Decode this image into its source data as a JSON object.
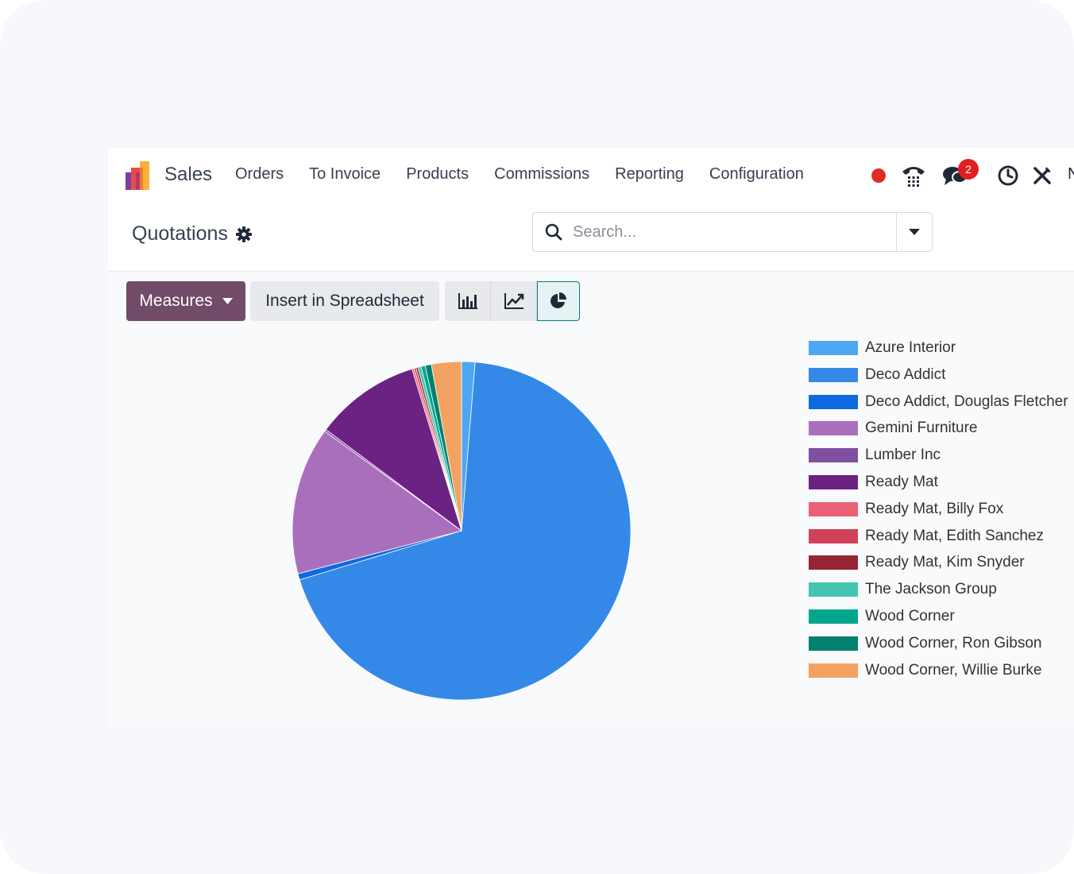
{
  "navbar": {
    "app_name": "Sales",
    "menu": [
      "Orders",
      "To Invoice",
      "Products",
      "Commissions",
      "Reporting",
      "Configuration"
    ],
    "messages_count": "2",
    "overflow_letter": "N"
  },
  "controlbar": {
    "breadcrumb": "Quotations",
    "search_placeholder": "Search..."
  },
  "toolbar": {
    "measures_label": "Measures",
    "spreadsheet_label": "Insert in Spreadsheet"
  },
  "chart_data": {
    "type": "pie",
    "title": "",
    "legend_position": "right",
    "categories": [
      "Azure Interior",
      "Deco Addict",
      "Deco Addict, Douglas Fletcher",
      "Gemini Furniture",
      "Lumber Inc",
      "Ready Mat",
      "Ready Mat, Billy Fox",
      "Ready Mat, Edith Sanchez",
      "Ready Mat, Kim Snyder",
      "The Jackson Group",
      "Wood Corner",
      "Wood Corner, Ron Gibson",
      "Wood Corner, Willie Burke"
    ],
    "values": [
      1.3,
      70.0,
      0.6,
      14.3,
      0.2,
      10.2,
      0.2,
      0.2,
      0.2,
      0.3,
      0.4,
      0.6,
      2.9
    ],
    "colors": [
      "#4ea7f2",
      "#3489e8",
      "#0e6ae0",
      "#a96fbd",
      "#7f4fa0",
      "#6c2283",
      "#ea6175",
      "#d04258",
      "#952535",
      "#43c5b1",
      "#00a78e",
      "#03806f",
      "#f4a261"
    ]
  }
}
